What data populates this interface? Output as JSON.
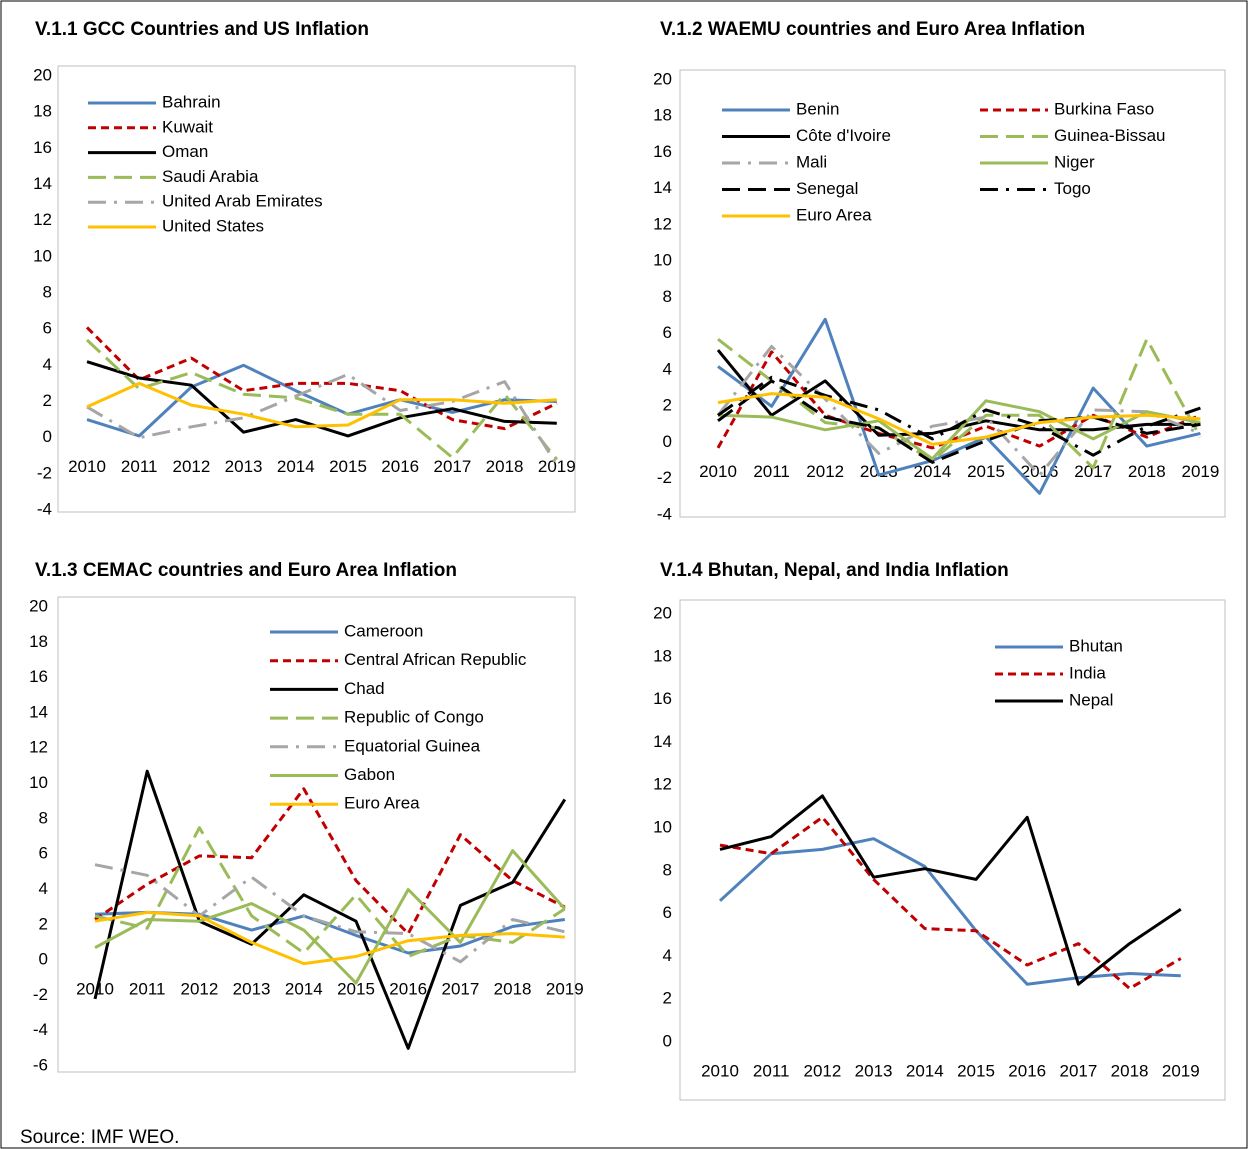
{
  "chart_data": [
    {
      "type": "line",
      "title": "V.1.1 GCC Countries and US Inflation",
      "categories": [
        "2010",
        "2011",
        "2012",
        "2013",
        "2014",
        "2015",
        "2016",
        "2017",
        "2018",
        "2019"
      ],
      "ylim": [
        -4,
        20
      ],
      "yticks": [
        -4,
        -2,
        0,
        2,
        4,
        6,
        8,
        10,
        12,
        14,
        16,
        18,
        20
      ],
      "grid": false,
      "legend": "top-left",
      "legend_columns": 1,
      "series": [
        {
          "name": "Bahrain",
          "color": "#4f81bd",
          "dash": "solid",
          "values": [
            1.0,
            0.1,
            2.8,
            4.0,
            2.6,
            1.3,
            2.1,
            1.4,
            2.1,
            2.0
          ]
        },
        {
          "name": "Kuwait",
          "color": "#c00000",
          "dash": "dash",
          "values": [
            6.1,
            3.2,
            4.4,
            2.6,
            3.0,
            3.0,
            2.6,
            1.0,
            0.5,
            1.9
          ]
        },
        {
          "name": "Oman",
          "color": "#000000",
          "dash": "solid",
          "values": [
            4.2,
            3.3,
            2.9,
            0.3,
            1.0,
            0.1,
            1.1,
            1.6,
            0.9,
            0.8
          ]
        },
        {
          "name": "Saudi Arabia",
          "color": "#9bbb59",
          "dash": "longdash",
          "values": [
            5.4,
            2.7,
            3.6,
            2.4,
            2.2,
            1.3,
            1.3,
            -1.1,
            2.4,
            -1.2
          ]
        },
        {
          "name": "United Arab Emirates",
          "color": "#a6a6a6",
          "dash": "dashdot",
          "values": [
            1.7,
            0.0,
            0.6,
            1.1,
            2.3,
            3.5,
            1.5,
            2.0,
            3.1,
            -1.5
          ]
        },
        {
          "name": "United States",
          "color": "#ffc000",
          "dash": "solid",
          "values": [
            1.7,
            3.0,
            1.8,
            1.3,
            0.6,
            0.7,
            2.1,
            2.1,
            1.9,
            2.1
          ]
        }
      ]
    },
    {
      "type": "line",
      "title": "V.1.2 WAEMU countries and Euro Area Inflation",
      "categories": [
        "2010",
        "2011",
        "2012",
        "2013",
        "2014",
        "2015",
        "2016",
        "2017",
        "2018",
        "2019"
      ],
      "ylim": [
        -4,
        20
      ],
      "yticks": [
        -4,
        -2,
        0,
        2,
        4,
        6,
        8,
        10,
        12,
        14,
        16,
        18,
        20
      ],
      "grid": false,
      "legend": "top-left",
      "legend_columns": 2,
      "series": [
        {
          "name": "Benin",
          "color": "#4f81bd",
          "dash": "solid",
          "values": [
            4.2,
            2.0,
            6.8,
            -1.8,
            -1.0,
            0.3,
            -2.8,
            3.0,
            -0.2,
            0.5
          ]
        },
        {
          "name": "Burkina Faso",
          "color": "#c00000",
          "dash": "dash",
          "values": [
            -0.3,
            5.0,
            1.5,
            0.5,
            -0.3,
            0.9,
            -0.2,
            1.5,
            0.3,
            1.5
          ]
        },
        {
          "name": "Côte d'Ivoire",
          "color": "#000000",
          "dash": "solid",
          "values": [
            5.1,
            1.5,
            3.4,
            0.4,
            0.5,
            1.2,
            0.7,
            0.7,
            1.0,
            1.0
          ]
        },
        {
          "name": "Guinea-Bissau",
          "color": "#9bbb59",
          "dash": "longdash",
          "values": [
            5.7,
            3.4,
            1.1,
            0.8,
            -1.0,
            1.5,
            1.5,
            -1.4,
            5.7,
            0.3
          ]
        },
        {
          "name": "Mali",
          "color": "#a6a6a6",
          "dash": "dashdot",
          "values": [
            1.5,
            5.3,
            2.4,
            -0.6,
            0.9,
            1.4,
            -1.8,
            1.8,
            1.7,
            0.5
          ]
        },
        {
          "name": "Niger",
          "color": "#9bbb59",
          "dash": "solid",
          "values": [
            1.5,
            1.4,
            0.7,
            1.2,
            -0.9,
            2.3,
            1.7,
            0.2,
            1.7,
            1.1
          ]
        },
        {
          "name": "Senegal",
          "color": "#000000",
          "dash": "longdash",
          "values": [
            1.2,
            3.4,
            1.4,
            0.8,
            -1.1,
            0.1,
            1.2,
            1.4,
            0.5,
            1.0
          ]
        },
        {
          "name": "Togo",
          "color": "#000000",
          "dash": "dashdot",
          "values": [
            1.5,
            3.6,
            2.6,
            1.8,
            0.2,
            1.8,
            0.9,
            -0.7,
            0.9,
            1.9
          ]
        },
        {
          "name": "Euro Area",
          "color": "#ffc000",
          "dash": "solid",
          "values": [
            2.2,
            2.7,
            2.5,
            1.3,
            -0.1,
            0.3,
            1.1,
            1.4,
            1.5,
            1.3
          ]
        }
      ]
    },
    {
      "type": "line",
      "title": "V.1.3 CEMAC countries and Euro Area Inflation",
      "categories": [
        "2010",
        "2011",
        "2012",
        "2013",
        "2014",
        "2015",
        "2016",
        "2017",
        "2018",
        "2019"
      ],
      "ylim": [
        -6,
        20
      ],
      "yticks": [
        -6,
        -4,
        -2,
        0,
        2,
        4,
        6,
        8,
        10,
        12,
        14,
        16,
        18,
        20
      ],
      "grid": false,
      "legend": "top-right",
      "legend_columns": 1,
      "series": [
        {
          "name": "Cameroon",
          "color": "#4f81bd",
          "dash": "solid",
          "values": [
            2.6,
            2.7,
            2.6,
            1.7,
            2.5,
            1.4,
            0.4,
            0.8,
            1.9,
            2.3
          ]
        },
        {
          "name": "Central African Republic",
          "color": "#c00000",
          "dash": "dash",
          "values": [
            2.3,
            4.3,
            5.9,
            5.8,
            9.7,
            4.5,
            1.5,
            7.1,
            4.5,
            3.0
          ]
        },
        {
          "name": "Chad",
          "color": "#000000",
          "dash": "solid",
          "values": [
            -2.2,
            10.7,
            2.2,
            0.9,
            3.7,
            2.2,
            -5.0,
            3.1,
            4.4,
            9.1
          ]
        },
        {
          "name": "Republic of Congo",
          "color": "#9bbb59",
          "dash": "longdash",
          "values": [
            2.5,
            1.8,
            7.5,
            2.5,
            0.4,
            3.7,
            0.2,
            1.4,
            1.0,
            2.9
          ]
        },
        {
          "name": "Equatorial Guinea",
          "color": "#a6a6a6",
          "dash": "dashdot",
          "values": [
            5.4,
            4.8,
            2.5,
            4.7,
            2.5,
            1.6,
            1.5,
            -0.1,
            2.3,
            1.6
          ]
        },
        {
          "name": "Gabon",
          "color": "#9bbb59",
          "dash": "solid",
          "values": [
            0.7,
            2.3,
            2.2,
            3.2,
            1.7,
            -1.3,
            4.0,
            1.0,
            6.2,
            2.9
          ]
        },
        {
          "name": "Euro Area",
          "color": "#ffc000",
          "dash": "solid",
          "values": [
            2.2,
            2.7,
            2.5,
            1.0,
            -0.2,
            0.2,
            1.1,
            1.4,
            1.5,
            1.3
          ]
        }
      ]
    },
    {
      "type": "line",
      "title": "V.1.4 Bhutan, Nepal, and India Inflation",
      "categories": [
        "2010",
        "2011",
        "2012",
        "2013",
        "2014",
        "2015",
        "2016",
        "2017",
        "2018",
        "2019"
      ],
      "ylim": [
        0,
        20
      ],
      "yticks": [
        0,
        2,
        4,
        6,
        8,
        10,
        12,
        14,
        16,
        18,
        20
      ],
      "grid": false,
      "legend": "top-right",
      "legend_columns": 1,
      "series": [
        {
          "name": "Bhutan",
          "color": "#4f81bd",
          "dash": "solid",
          "values": [
            6.6,
            8.8,
            9.0,
            9.5,
            8.2,
            5.2,
            2.7,
            3.0,
            3.2,
            3.1
          ]
        },
        {
          "name": "India",
          "color": "#c00000",
          "dash": "dash",
          "values": [
            9.2,
            8.8,
            10.5,
            7.6,
            5.3,
            5.2,
            3.6,
            4.6,
            2.5,
            3.9
          ]
        },
        {
          "name": "Nepal",
          "color": "#000000",
          "dash": "solid",
          "values": [
            9.0,
            9.6,
            11.5,
            7.7,
            8.1,
            7.6,
            10.5,
            2.7,
            4.6,
            6.2
          ]
        }
      ]
    }
  ],
  "source": "Source: IMF WEO."
}
